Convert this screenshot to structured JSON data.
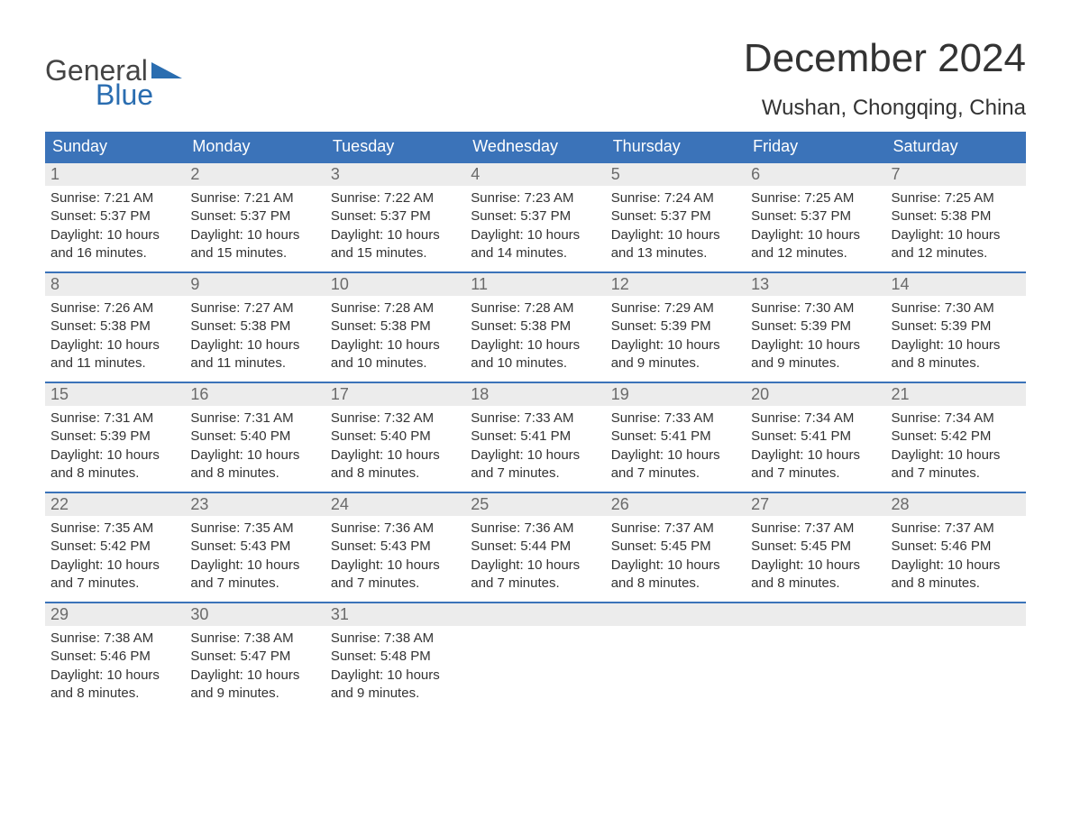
{
  "logo": {
    "general": "General",
    "blue": "Blue"
  },
  "title": "December 2024",
  "location": "Wushan, Chongqing, China",
  "colors": {
    "header_bg": "#3b73b9",
    "header_text": "#ffffff",
    "daynum_bg": "#ececec",
    "daynum_text": "#6a6a6a",
    "body_text": "#333333",
    "logo_blue": "#2a6db0",
    "logo_gray": "#444444",
    "week_border": "#3b73b9"
  },
  "daysOfWeek": [
    "Sunday",
    "Monday",
    "Tuesday",
    "Wednesday",
    "Thursday",
    "Friday",
    "Saturday"
  ],
  "weeks": [
    [
      {
        "n": "1",
        "sunrise": "Sunrise: 7:21 AM",
        "sunset": "Sunset: 5:37 PM",
        "dl1": "Daylight: 10 hours",
        "dl2": "and 16 minutes."
      },
      {
        "n": "2",
        "sunrise": "Sunrise: 7:21 AM",
        "sunset": "Sunset: 5:37 PM",
        "dl1": "Daylight: 10 hours",
        "dl2": "and 15 minutes."
      },
      {
        "n": "3",
        "sunrise": "Sunrise: 7:22 AM",
        "sunset": "Sunset: 5:37 PM",
        "dl1": "Daylight: 10 hours",
        "dl2": "and 15 minutes."
      },
      {
        "n": "4",
        "sunrise": "Sunrise: 7:23 AM",
        "sunset": "Sunset: 5:37 PM",
        "dl1": "Daylight: 10 hours",
        "dl2": "and 14 minutes."
      },
      {
        "n": "5",
        "sunrise": "Sunrise: 7:24 AM",
        "sunset": "Sunset: 5:37 PM",
        "dl1": "Daylight: 10 hours",
        "dl2": "and 13 minutes."
      },
      {
        "n": "6",
        "sunrise": "Sunrise: 7:25 AM",
        "sunset": "Sunset: 5:37 PM",
        "dl1": "Daylight: 10 hours",
        "dl2": "and 12 minutes."
      },
      {
        "n": "7",
        "sunrise": "Sunrise: 7:25 AM",
        "sunset": "Sunset: 5:38 PM",
        "dl1": "Daylight: 10 hours",
        "dl2": "and 12 minutes."
      }
    ],
    [
      {
        "n": "8",
        "sunrise": "Sunrise: 7:26 AM",
        "sunset": "Sunset: 5:38 PM",
        "dl1": "Daylight: 10 hours",
        "dl2": "and 11 minutes."
      },
      {
        "n": "9",
        "sunrise": "Sunrise: 7:27 AM",
        "sunset": "Sunset: 5:38 PM",
        "dl1": "Daylight: 10 hours",
        "dl2": "and 11 minutes."
      },
      {
        "n": "10",
        "sunrise": "Sunrise: 7:28 AM",
        "sunset": "Sunset: 5:38 PM",
        "dl1": "Daylight: 10 hours",
        "dl2": "and 10 minutes."
      },
      {
        "n": "11",
        "sunrise": "Sunrise: 7:28 AM",
        "sunset": "Sunset: 5:38 PM",
        "dl1": "Daylight: 10 hours",
        "dl2": "and 10 minutes."
      },
      {
        "n": "12",
        "sunrise": "Sunrise: 7:29 AM",
        "sunset": "Sunset: 5:39 PM",
        "dl1": "Daylight: 10 hours",
        "dl2": "and 9 minutes."
      },
      {
        "n": "13",
        "sunrise": "Sunrise: 7:30 AM",
        "sunset": "Sunset: 5:39 PM",
        "dl1": "Daylight: 10 hours",
        "dl2": "and 9 minutes."
      },
      {
        "n": "14",
        "sunrise": "Sunrise: 7:30 AM",
        "sunset": "Sunset: 5:39 PM",
        "dl1": "Daylight: 10 hours",
        "dl2": "and 8 minutes."
      }
    ],
    [
      {
        "n": "15",
        "sunrise": "Sunrise: 7:31 AM",
        "sunset": "Sunset: 5:39 PM",
        "dl1": "Daylight: 10 hours",
        "dl2": "and 8 minutes."
      },
      {
        "n": "16",
        "sunrise": "Sunrise: 7:31 AM",
        "sunset": "Sunset: 5:40 PM",
        "dl1": "Daylight: 10 hours",
        "dl2": "and 8 minutes."
      },
      {
        "n": "17",
        "sunrise": "Sunrise: 7:32 AM",
        "sunset": "Sunset: 5:40 PM",
        "dl1": "Daylight: 10 hours",
        "dl2": "and 8 minutes."
      },
      {
        "n": "18",
        "sunrise": "Sunrise: 7:33 AM",
        "sunset": "Sunset: 5:41 PM",
        "dl1": "Daylight: 10 hours",
        "dl2": "and 7 minutes."
      },
      {
        "n": "19",
        "sunrise": "Sunrise: 7:33 AM",
        "sunset": "Sunset: 5:41 PM",
        "dl1": "Daylight: 10 hours",
        "dl2": "and 7 minutes."
      },
      {
        "n": "20",
        "sunrise": "Sunrise: 7:34 AM",
        "sunset": "Sunset: 5:41 PM",
        "dl1": "Daylight: 10 hours",
        "dl2": "and 7 minutes."
      },
      {
        "n": "21",
        "sunrise": "Sunrise: 7:34 AM",
        "sunset": "Sunset: 5:42 PM",
        "dl1": "Daylight: 10 hours",
        "dl2": "and 7 minutes."
      }
    ],
    [
      {
        "n": "22",
        "sunrise": "Sunrise: 7:35 AM",
        "sunset": "Sunset: 5:42 PM",
        "dl1": "Daylight: 10 hours",
        "dl2": "and 7 minutes."
      },
      {
        "n": "23",
        "sunrise": "Sunrise: 7:35 AM",
        "sunset": "Sunset: 5:43 PM",
        "dl1": "Daylight: 10 hours",
        "dl2": "and 7 minutes."
      },
      {
        "n": "24",
        "sunrise": "Sunrise: 7:36 AM",
        "sunset": "Sunset: 5:43 PM",
        "dl1": "Daylight: 10 hours",
        "dl2": "and 7 minutes."
      },
      {
        "n": "25",
        "sunrise": "Sunrise: 7:36 AM",
        "sunset": "Sunset: 5:44 PM",
        "dl1": "Daylight: 10 hours",
        "dl2": "and 7 minutes."
      },
      {
        "n": "26",
        "sunrise": "Sunrise: 7:37 AM",
        "sunset": "Sunset: 5:45 PM",
        "dl1": "Daylight: 10 hours",
        "dl2": "and 8 minutes."
      },
      {
        "n": "27",
        "sunrise": "Sunrise: 7:37 AM",
        "sunset": "Sunset: 5:45 PM",
        "dl1": "Daylight: 10 hours",
        "dl2": "and 8 minutes."
      },
      {
        "n": "28",
        "sunrise": "Sunrise: 7:37 AM",
        "sunset": "Sunset: 5:46 PM",
        "dl1": "Daylight: 10 hours",
        "dl2": "and 8 minutes."
      }
    ],
    [
      {
        "n": "29",
        "sunrise": "Sunrise: 7:38 AM",
        "sunset": "Sunset: 5:46 PM",
        "dl1": "Daylight: 10 hours",
        "dl2": "and 8 minutes."
      },
      {
        "n": "30",
        "sunrise": "Sunrise: 7:38 AM",
        "sunset": "Sunset: 5:47 PM",
        "dl1": "Daylight: 10 hours",
        "dl2": "and 9 minutes."
      },
      {
        "n": "31",
        "sunrise": "Sunrise: 7:38 AM",
        "sunset": "Sunset: 5:48 PM",
        "dl1": "Daylight: 10 hours",
        "dl2": "and 9 minutes."
      },
      {
        "empty": true
      },
      {
        "empty": true
      },
      {
        "empty": true
      },
      {
        "empty": true
      }
    ]
  ]
}
